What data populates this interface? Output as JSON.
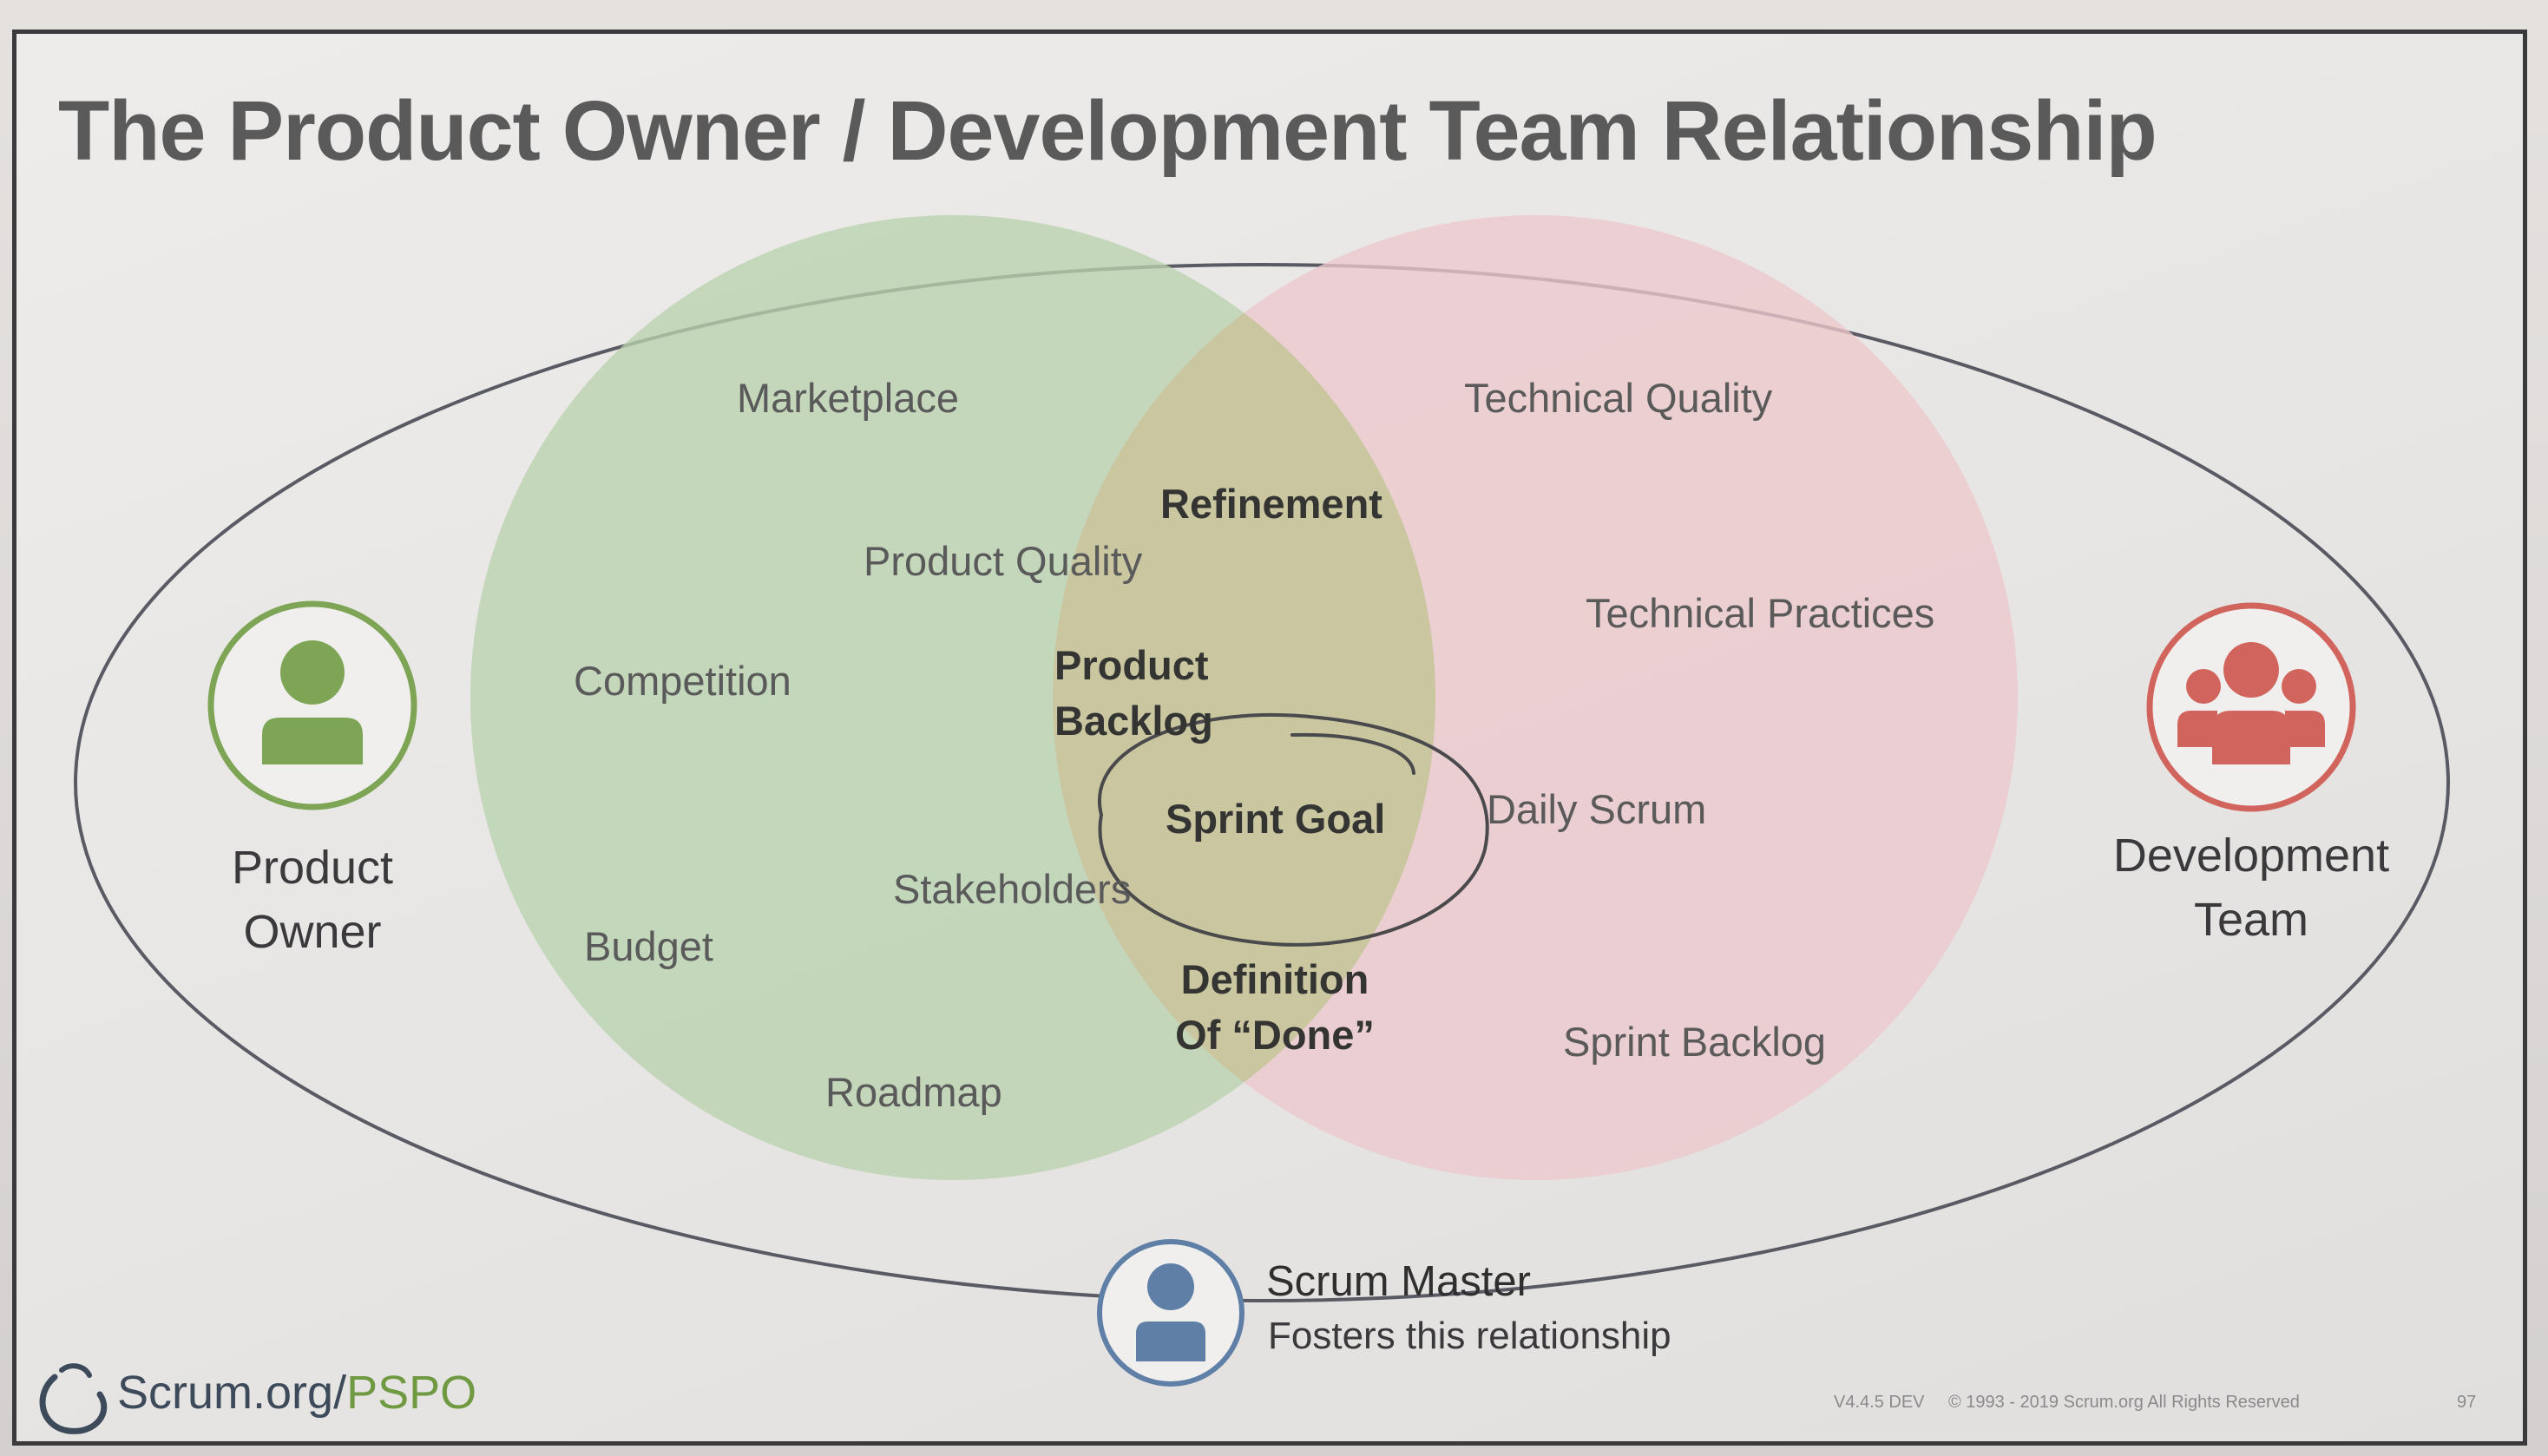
{
  "slide": {
    "title": "The Product Owner / Development Team Relationship"
  },
  "product_owner": {
    "label_line1": "Product",
    "label_line2": "Owner",
    "icon": "person-icon",
    "color": "#7ea556"
  },
  "development_team": {
    "label_line1": "Development",
    "label_line2": "Team",
    "icon": "team-icon",
    "color": "#d1655d"
  },
  "product_owner_circle": {
    "color": "#b9d2ae",
    "items": {
      "marketplace": "Marketplace",
      "product_quality": "Product Quality",
      "competition": "Competition",
      "budget": "Budget",
      "stakeholders": "Stakeholders",
      "roadmap": "Roadmap"
    }
  },
  "development_team_circle": {
    "color": "#ecc8cc",
    "items": {
      "technical_quality": "Technical Quality",
      "technical_practices": "Technical Practices",
      "daily_scrum": "Daily Scrum",
      "sprint_backlog": "Sprint Backlog"
    }
  },
  "overlap": {
    "color": "#c4c699",
    "items": {
      "refinement": "Refinement",
      "product_backlog_line1": "Product",
      "product_backlog_line2": "Backlog",
      "sprint_goal": "Sprint Goal",
      "definition_of_done_line1": "Definition",
      "definition_of_done_line2": "Of “Done”"
    }
  },
  "scrum_master": {
    "title": "Scrum Master",
    "subtitle": "Fosters this relationship",
    "icon": "person-icon",
    "color": "#5f7fa7"
  },
  "logo": {
    "text_main": "Scrum.org/",
    "text_accent": "PSPO",
    "icon": "scrum-logo-icon"
  },
  "footer": {
    "version": "V4.4.5 DEV",
    "copyright": "© 1993 - 2019 Scrum.org All Rights Reserved",
    "page_number": "97"
  }
}
